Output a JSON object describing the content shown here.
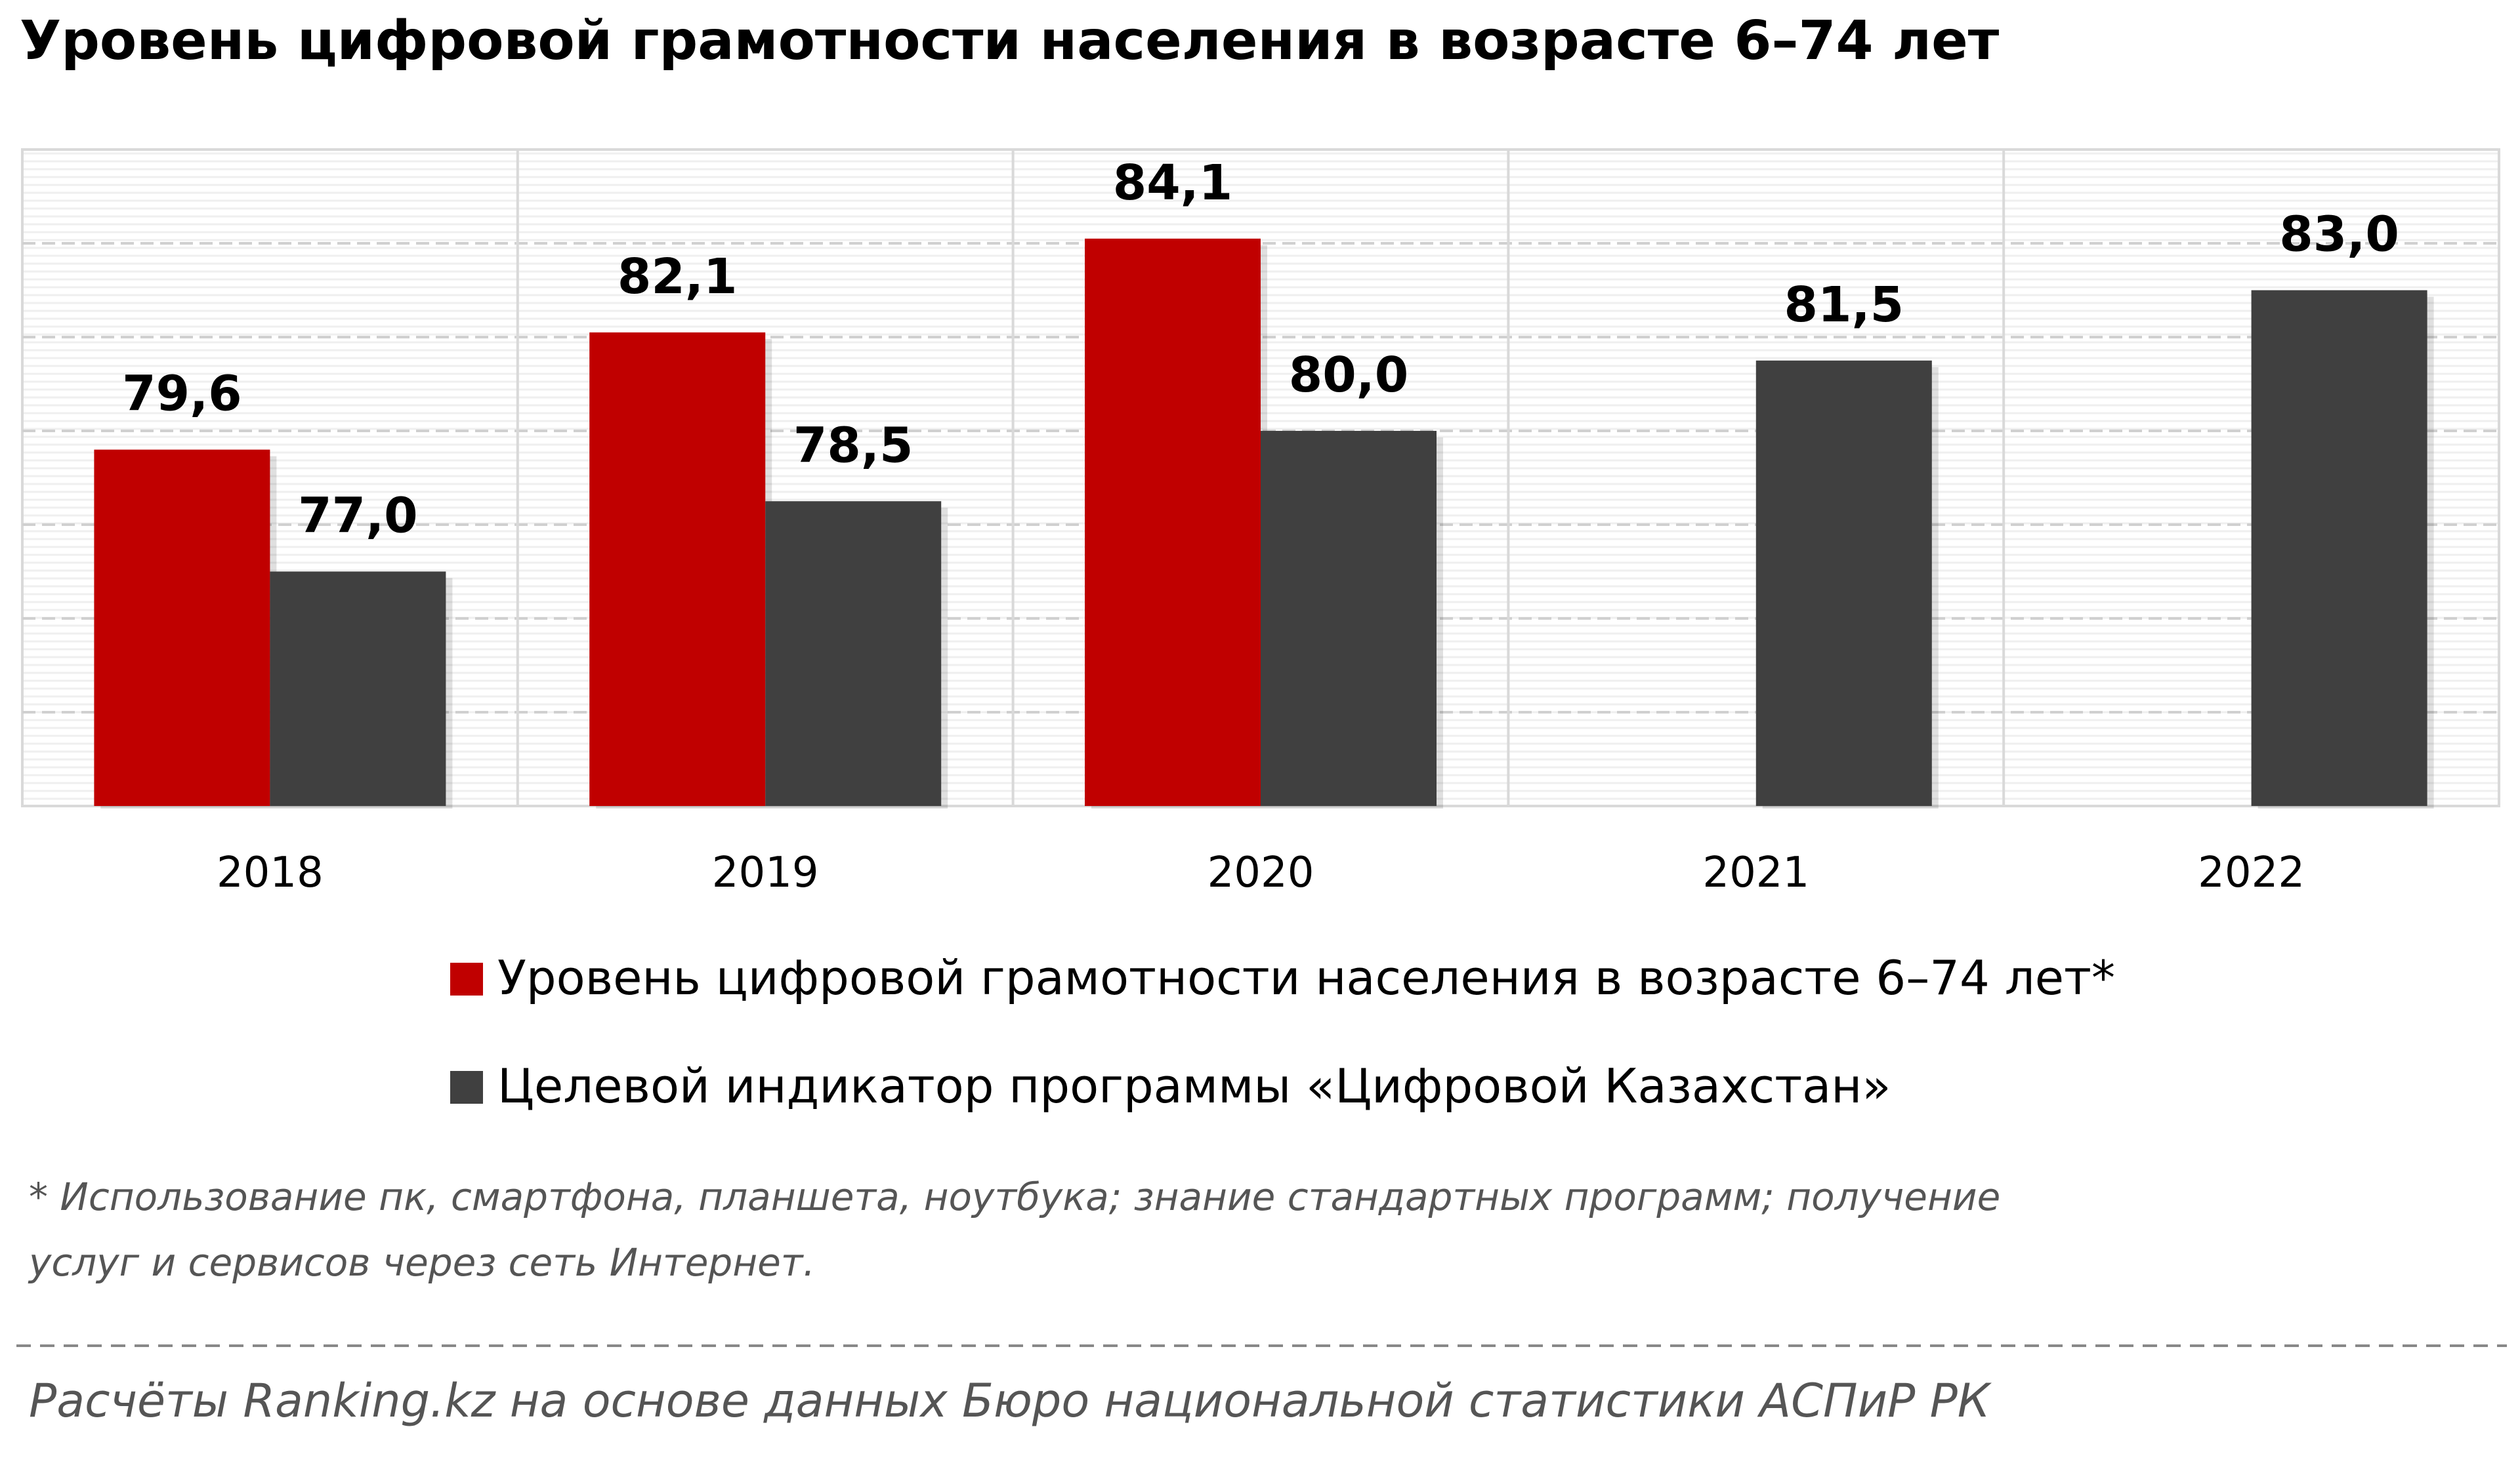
{
  "chart_data": {
    "type": "bar",
    "title": "Уровень цифровой грамотности населения в возрасте 6–74 лет",
    "categories": [
      "2018",
      "2019",
      "2020",
      "2021",
      "2022"
    ],
    "series": [
      {
        "name": "Уровень цифровой грамотности населения в возрасте 6–74 лет*",
        "color": "#c00000",
        "values": [
          79.6,
          82.1,
          84.1,
          null,
          null
        ],
        "value_labels": [
          "79,6",
          "82,1",
          "84,1",
          null,
          null
        ]
      },
      {
        "name": "Целевой индикатор программы «Цифровой Казахстан»",
        "color": "#404040",
        "values": [
          77.0,
          78.5,
          80.0,
          81.5,
          83.0
        ],
        "value_labels": [
          "77,0",
          "78,5",
          "80,0",
          "81,5",
          "83,0"
        ]
      }
    ],
    "ylim": [
      72,
      86
    ],
    "yticks": [
      74,
      76,
      78,
      80,
      82,
      84
    ],
    "grid": true,
    "footnote": [
      "* Использование пк, смартфона, планшета, ноутбука; знание стандартных программ; получение",
      "услуг и сервисов через сеть Интернет."
    ],
    "source": "Расчёты Ranking.kz на основе данных  Бюро национальной  статистики АСПиР РК"
  }
}
